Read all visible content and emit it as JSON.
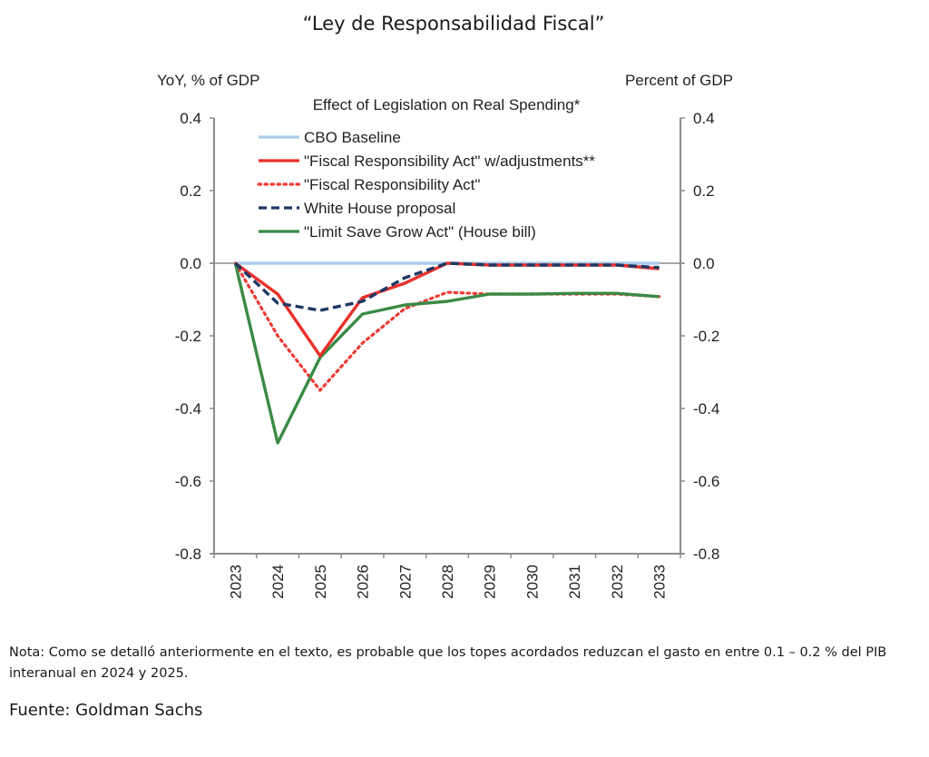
{
  "page": {
    "title": "“Ley de Responsabilidad Fiscal”",
    "note": "Nota: Como se detalló anteriormente en el texto, es probable que los topes acordados reduzcan el gasto en entre 0.1 – 0.2 % del PIB interanual en 2024 y 2025.",
    "source": "Fuente:  Goldman Sachs"
  },
  "chart_data": {
    "type": "line",
    "title": "Effect of Legislation on Real Spending*",
    "ylabel_left": "YoY, % of GDP",
    "ylabel_right": "Percent of GDP",
    "xlabel": "",
    "x": [
      "2023",
      "2024",
      "2025",
      "2026",
      "2027",
      "2028",
      "2029",
      "2030",
      "2031",
      "2032",
      "2033"
    ],
    "ylim": [
      -0.8,
      0.4
    ],
    "yticks": [
      "0.4",
      "0.2",
      "0.0",
      "-0.2",
      "-0.4",
      "-0.6",
      "-0.8"
    ],
    "yticks_values": [
      0.4,
      0.2,
      0.0,
      -0.2,
      -0.4,
      -0.6,
      -0.8
    ],
    "grid": false,
    "legend_position": "top-left",
    "series": [
      {
        "name": "CBO Baseline",
        "color": "#a9cdec",
        "style": "solid",
        "values": [
          0,
          0,
          0,
          0,
          0,
          0,
          0,
          0,
          0,
          0,
          0
        ]
      },
      {
        "name": "\"Fiscal Responsibility Act\" w/adjustments**",
        "color": "#e8302a",
        "style": "solid",
        "values": [
          0,
          -0.085,
          -0.255,
          -0.095,
          -0.055,
          0.0,
          -0.005,
          -0.005,
          -0.005,
          -0.005,
          -0.015
        ]
      },
      {
        "name": "\"Fiscal Responsibility Act\"",
        "color": "#ef3a34",
        "style": "dotted",
        "values": [
          0,
          -0.2,
          -0.35,
          -0.22,
          -0.125,
          -0.08,
          -0.085,
          -0.085,
          -0.085,
          -0.085,
          -0.092
        ]
      },
      {
        "name": "White House proposal",
        "color": "#1f3864",
        "style": "dashed",
        "values": [
          0,
          -0.11,
          -0.13,
          -0.105,
          -0.04,
          0.0,
          -0.005,
          -0.005,
          -0.005,
          -0.005,
          -0.012
        ]
      },
      {
        "name": "\"Limit Save Grow Act\" (House bill)",
        "color": "#3a8a45",
        "style": "solid",
        "values": [
          0,
          -0.495,
          -0.26,
          -0.14,
          -0.115,
          -0.105,
          -0.085,
          -0.085,
          -0.083,
          -0.083,
          -0.092
        ]
      }
    ]
  }
}
